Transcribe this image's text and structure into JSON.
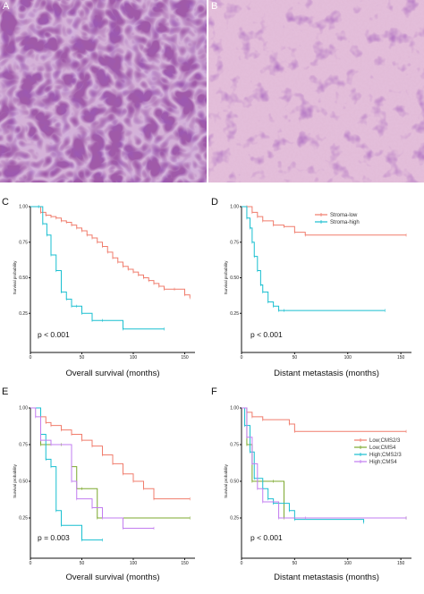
{
  "panels": {
    "A": "A",
    "B": "B",
    "C": "C",
    "D": "D",
    "E": "E",
    "F": "F"
  },
  "colors": {
    "he_purple": "#7a3f8f",
    "he_pink": "#d8a6c8",
    "red": "#f07c6c",
    "cyan": "#19bfd0",
    "olive": "#7ca82e",
    "violet": "#c27cf0"
  },
  "chart_data": [
    {
      "id": "C",
      "type": "line",
      "step": true,
      "ylabel": "Survival probability",
      "xlabel": "Overall survival (months)",
      "pvalue": "p < 0.001",
      "xlim": [
        0,
        160
      ],
      "ylim": [
        0.0,
        1.0
      ],
      "xticks": [
        "0",
        "50",
        "100",
        "150"
      ],
      "yticks": [
        "0.00",
        "0.25",
        "0.50",
        "0.75",
        "1.00"
      ],
      "legend": [],
      "series": [
        {
          "color": "#f07c6c",
          "x": [
            0,
            8,
            10,
            15,
            20,
            25,
            30,
            35,
            40,
            45,
            50,
            55,
            60,
            65,
            70,
            75,
            80,
            85,
            90,
            95,
            100,
            105,
            110,
            115,
            120,
            125,
            130,
            140,
            150,
            155
          ],
          "y": [
            1.0,
            1.0,
            0.96,
            0.94,
            0.93,
            0.92,
            0.9,
            0.89,
            0.87,
            0.85,
            0.83,
            0.8,
            0.78,
            0.75,
            0.72,
            0.68,
            0.64,
            0.61,
            0.58,
            0.56,
            0.54,
            0.52,
            0.5,
            0.48,
            0.46,
            0.44,
            0.42,
            0.42,
            0.38,
            0.36
          ]
        },
        {
          "color": "#19bfd0",
          "x": [
            0,
            8,
            12,
            16,
            20,
            25,
            30,
            35,
            40,
            45,
            50,
            60,
            70,
            90,
            130
          ],
          "y": [
            1.0,
            1.0,
            0.88,
            0.8,
            0.66,
            0.55,
            0.4,
            0.35,
            0.3,
            0.3,
            0.25,
            0.2,
            0.2,
            0.14,
            0.14
          ]
        }
      ]
    },
    {
      "id": "D",
      "type": "line",
      "step": true,
      "ylabel": "Survival probability",
      "xlabel": "Distant metastasis (months)",
      "pvalue": "p < 0.001",
      "xlim": [
        0,
        160
      ],
      "ylim": [
        0.0,
        1.0
      ],
      "xticks": [
        "0",
        "50",
        "100",
        "150"
      ],
      "yticks": [
        "0.00",
        "0.25",
        "0.50",
        "0.75",
        "1.00"
      ],
      "legend": [
        {
          "label": "Stroma-low",
          "color": "#f07c6c"
        },
        {
          "label": "Stroma-high",
          "color": "#19bfd0"
        }
      ],
      "series": [
        {
          "color": "#f07c6c",
          "x": [
            0,
            5,
            10,
            15,
            20,
            30,
            40,
            50,
            60,
            155
          ],
          "y": [
            1.0,
            1.0,
            0.96,
            0.93,
            0.9,
            0.87,
            0.86,
            0.82,
            0.8,
            0.8
          ]
        },
        {
          "color": "#19bfd0",
          "x": [
            0,
            5,
            8,
            10,
            12,
            15,
            18,
            20,
            25,
            30,
            35,
            40,
            135
          ],
          "y": [
            1.0,
            0.92,
            0.85,
            0.75,
            0.65,
            0.55,
            0.45,
            0.4,
            0.33,
            0.3,
            0.27,
            0.27,
            0.27
          ]
        }
      ]
    },
    {
      "id": "E",
      "type": "line",
      "step": true,
      "ylabel": "Survival probability",
      "xlabel": "Overall survival (months)",
      "pvalue": "p = 0.003",
      "xlim": [
        0,
        160
      ],
      "ylim": [
        0.0,
        1.0
      ],
      "xticks": [
        "0",
        "50",
        "100",
        "150"
      ],
      "yticks": [
        "0.00",
        "0.25",
        "0.50",
        "0.75",
        "1.00"
      ],
      "legend": [],
      "series": [
        {
          "color": "#f07c6c",
          "x": [
            0,
            10,
            15,
            20,
            30,
            40,
            50,
            60,
            70,
            80,
            90,
            100,
            110,
            120,
            155
          ],
          "y": [
            1.0,
            0.94,
            0.9,
            0.88,
            0.85,
            0.82,
            0.78,
            0.74,
            0.68,
            0.62,
            0.55,
            0.5,
            0.45,
            0.38,
            0.38
          ]
        },
        {
          "color": "#7ca82e",
          "x": [
            0,
            10,
            30,
            40,
            45,
            50,
            65,
            155
          ],
          "y": [
            1.0,
            0.75,
            0.75,
            0.6,
            0.45,
            0.45,
            0.25,
            0.25
          ]
        },
        {
          "color": "#19bfd0",
          "x": [
            0,
            10,
            15,
            20,
            25,
            30,
            50,
            70
          ],
          "y": [
            1.0,
            0.82,
            0.65,
            0.6,
            0.3,
            0.2,
            0.1,
            0.1
          ]
        },
        {
          "color": "#c27cf0",
          "x": [
            0,
            5,
            10,
            20,
            40,
            45,
            60,
            70,
            90,
            120
          ],
          "y": [
            1.0,
            0.94,
            0.78,
            0.75,
            0.5,
            0.38,
            0.32,
            0.25,
            0.18,
            0.18
          ]
        }
      ]
    },
    {
      "id": "F",
      "type": "line",
      "step": true,
      "ylabel": "Survival probability",
      "xlabel": "Distant metastasis (months)",
      "pvalue": "p < 0.001",
      "xlim": [
        0,
        160
      ],
      "ylim": [
        0.0,
        1.0
      ],
      "xticks": [
        "0",
        "50",
        "100",
        "150"
      ],
      "yticks": [
        "0.00",
        "0.25",
        "0.50",
        "0.75",
        "1.00"
      ],
      "legend": [
        {
          "label": "Low;CMS2/3",
          "color": "#f07c6c"
        },
        {
          "label": "Low;CMS4",
          "color": "#7ca82e"
        },
        {
          "label": "High;CMS2/3",
          "color": "#19bfd0"
        },
        {
          "label": "High;CMS4",
          "color": "#c27cf0"
        }
      ],
      "series": [
        {
          "color": "#f07c6c",
          "x": [
            0,
            5,
            10,
            20,
            45,
            50,
            155
          ],
          "y": [
            1.0,
            0.97,
            0.94,
            0.92,
            0.89,
            0.84,
            0.84
          ]
        },
        {
          "color": "#7ca82e",
          "x": [
            0,
            5,
            10,
            30,
            40,
            155
          ],
          "y": [
            1.0,
            0.75,
            0.5,
            0.5,
            0.25,
            0.25
          ]
        },
        {
          "color": "#19bfd0",
          "x": [
            0,
            3,
            8,
            12,
            20,
            25,
            30,
            45,
            50,
            115
          ],
          "y": [
            1.0,
            0.88,
            0.7,
            0.52,
            0.45,
            0.38,
            0.35,
            0.3,
            0.24,
            0.22
          ]
        },
        {
          "color": "#c27cf0",
          "x": [
            0,
            5,
            10,
            15,
            20,
            35,
            60,
            155
          ],
          "y": [
            1.0,
            0.8,
            0.62,
            0.45,
            0.36,
            0.25,
            0.25,
            0.25
          ]
        }
      ]
    }
  ]
}
